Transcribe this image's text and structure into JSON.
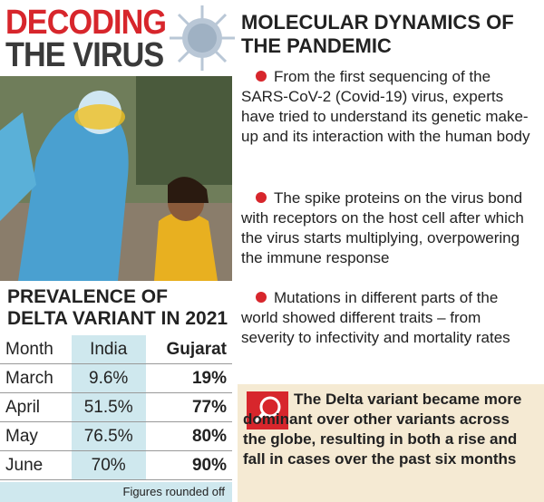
{
  "header": {
    "title_line1": "DECODING",
    "title_line2": "THE VIRUS"
  },
  "table": {
    "title": "PREVALENCE OF DELTA VARIANT IN 2021",
    "columns": [
      "Month",
      "India",
      "Gujarat"
    ],
    "rows": [
      [
        "March",
        "9.6%",
        "19%"
      ],
      [
        "April",
        "51.5%",
        "77%"
      ],
      [
        "May",
        "76.5%",
        "80%"
      ],
      [
        "June",
        "70%",
        "90%"
      ]
    ],
    "note": "Figures rounded off"
  },
  "article": {
    "title": "MOLECULAR DYNAMICS OF THE PANDEMIC",
    "bullets": [
      "From the first sequencing of the SARS-CoV-2 (Covid-19) virus, experts have tried to understand its genetic make-up and its interaction with the human body",
      "The spike proteins on the virus bond with receptors on the host cell after which the virus starts multiplying, overpowering the immune response",
      "Mutations in different parts of the world showed different traits – from severity to infectivity and mortality rates"
    ],
    "highlight": "The Delta variant became more dominant over other variants across the globe, resulting in both a rise and fall in cases over the past six months"
  }
}
